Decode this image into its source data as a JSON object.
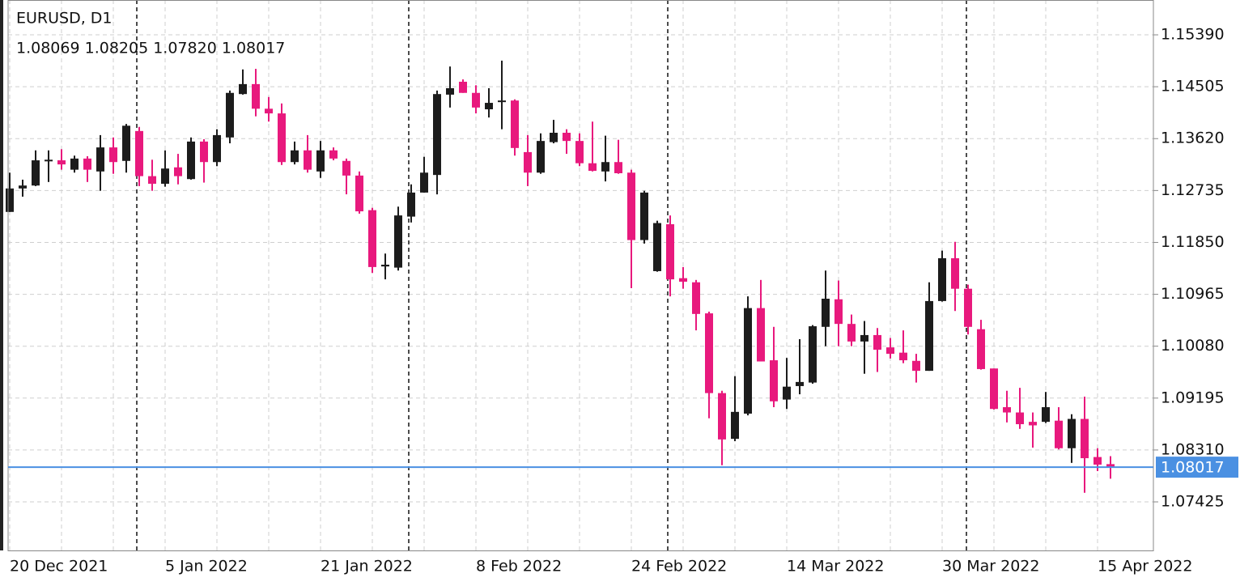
{
  "chart_data": {
    "type": "candlestick",
    "title": "EURUSD, D1",
    "subtitle": "1.08069 1.08205 1.07820 1.08017",
    "categories": [
      "20 Dec 2021",
      null,
      null,
      null,
      null,
      null,
      null,
      null,
      null,
      null,
      null,
      null,
      "5 Jan 2022",
      null,
      null,
      null,
      null,
      null,
      null,
      null,
      null,
      null,
      null,
      null,
      "21 Jan 2022",
      null,
      null,
      null,
      null,
      null,
      null,
      null,
      null,
      null,
      null,
      null,
      "8 Feb 2022",
      null,
      null,
      null,
      null,
      null,
      null,
      null,
      null,
      null,
      null,
      null,
      "24 Feb 2022",
      null,
      null,
      null,
      null,
      null,
      null,
      null,
      null,
      null,
      null,
      null,
      "14 Mar 2022",
      null,
      null,
      null,
      null,
      null,
      null,
      null,
      null,
      null,
      null,
      null,
      "30 Mar 2022",
      null,
      null,
      null,
      null,
      null,
      null,
      null,
      null,
      null,
      null,
      null,
      "15 Apr 2022",
      null
    ],
    "open": [
      1.1237,
      1.1277,
      1.1282,
      1.1324,
      1.1325,
      1.1309,
      1.1328,
      1.1306,
      1.1347,
      1.1324,
      1.1375,
      1.1298,
      1.1285,
      1.1313,
      1.1293,
      1.1357,
      1.1322,
      1.1364,
      1.1438,
      1.1455,
      1.1413,
      1.1405,
      1.1322,
      1.1342,
      1.1306,
      1.1342,
      1.1324,
      1.1299,
      1.124,
      1.1144,
      1.1142,
      1.1229,
      1.127,
      1.13,
      1.1437,
      1.1459,
      1.144,
      1.1412,
      1.1425,
      1.1427,
      1.1339,
      1.1304,
      1.1356,
      1.1372,
      1.1358,
      1.132,
      1.1306,
      1.1322,
      1.1304,
      1.1189,
      1.1136,
      1.1216,
      1.1124,
      1.1117,
      1.1064,
      1.0928,
      1.085,
      1.0893,
      1.1073,
      1.0984,
      1.0917,
      1.094,
      1.0946,
      1.1041,
      1.1088,
      1.1046,
      1.1016,
      1.1027,
      1.1006,
      1.0997,
      1.0983,
      1.0966,
      1.1085,
      1.1158,
      1.1106,
      1.1037,
      1.097,
      1.0904,
      1.0895,
      1.0879,
      1.0879,
      1.0881,
      1.0834,
      1.0884,
      1.0819,
      1.08069
    ],
    "high": [
      1.1304,
      1.1292,
      1.1342,
      1.1342,
      1.1344,
      1.1333,
      1.1332,
      1.1368,
      1.1364,
      1.1387,
      1.1382,
      1.1326,
      1.1342,
      1.1336,
      1.1364,
      1.1361,
      1.1378,
      1.1444,
      1.148,
      1.1481,
      1.1433,
      1.1422,
      1.1357,
      1.1368,
      1.1358,
      1.1347,
      1.1328,
      1.1306,
      1.1244,
      1.1166,
      1.1246,
      1.1284,
      1.1331,
      1.1444,
      1.1485,
      1.1463,
      1.1453,
      1.1448,
      1.1495,
      1.1429,
      1.1368,
      1.1371,
      1.1394,
      1.1378,
      1.1371,
      1.1391,
      1.1367,
      1.136,
      1.1309,
      1.1273,
      1.1222,
      1.1231,
      1.1143,
      1.1121,
      1.1067,
      1.0932,
      1.0957,
      1.1093,
      1.1121,
      1.1041,
      1.0988,
      1.102,
      1.1044,
      1.1137,
      1.112,
      1.1062,
      1.1051,
      1.1039,
      1.1022,
      1.1035,
      1.0995,
      1.1117,
      1.1171,
      1.1186,
      1.1113,
      1.1053,
      1.097,
      1.0932,
      1.0937,
      1.0895,
      1.093,
      1.0904,
      1.0892,
      1.0922,
      1.0834,
      1.08205
    ],
    "low": [
      1.1237,
      1.1263,
      1.1281,
      1.1288,
      1.1309,
      1.1304,
      1.1288,
      1.1273,
      1.1302,
      1.1304,
      1.1281,
      1.1273,
      1.128,
      1.1284,
      1.1292,
      1.1287,
      1.1315,
      1.1354,
      1.1437,
      1.14,
      1.1391,
      1.1317,
      1.1318,
      1.1304,
      1.1295,
      1.1325,
      1.1267,
      1.1234,
      1.1133,
      1.1122,
      1.1137,
      1.1219,
      1.127,
      1.1267,
      1.1415,
      1.144,
      1.1405,
      1.1398,
      1.1378,
      1.1333,
      1.1281,
      1.1302,
      1.1354,
      1.1336,
      1.1315,
      1.1306,
      1.1289,
      1.1302,
      1.1107,
      1.1183,
      1.1135,
      1.1093,
      1.1106,
      1.1035,
      1.0885,
      1.0805,
      1.0846,
      1.089,
      1.0982,
      1.0904,
      1.0901,
      1.0926,
      1.0944,
      1.1008,
      1.1008,
      1.1008,
      1.0961,
      1.0964,
      1.0987,
      1.0979,
      1.0946,
      1.0966,
      1.1084,
      1.1068,
      1.1028,
      1.0968,
      1.09,
      1.0878,
      1.0867,
      1.0835,
      1.0877,
      1.0832,
      1.0809,
      1.0758,
      1.0795,
      1.0782
    ],
    "close": [
      1.1277,
      1.1282,
      1.1325,
      1.1326,
      1.1318,
      1.1328,
      1.1309,
      1.1347,
      1.1322,
      1.1384,
      1.1298,
      1.1285,
      1.1311,
      1.1298,
      1.1357,
      1.1322,
      1.1368,
      1.144,
      1.1455,
      1.1413,
      1.1405,
      1.1322,
      1.1342,
      1.1309,
      1.1342,
      1.1328,
      1.1299,
      1.1238,
      1.1143,
      1.1147,
      1.1231,
      1.127,
      1.1304,
      1.1438,
      1.1448,
      1.144,
      1.1415,
      1.1423,
      1.1427,
      1.1346,
      1.1304,
      1.1358,
      1.1372,
      1.1358,
      1.132,
      1.1307,
      1.1322,
      1.1303,
      1.1189,
      1.127,
      1.1218,
      1.1122,
      1.1118,
      1.1063,
      1.0928,
      1.0849,
      1.0896,
      1.1073,
      1.0982,
      1.0914,
      1.0939,
      1.0947,
      1.1042,
      1.1089,
      1.1046,
      1.1016,
      1.1027,
      1.1002,
      1.0995,
      1.0984,
      1.0966,
      1.1085,
      1.1158,
      1.1106,
      1.1041,
      1.0969,
      1.0901,
      1.0895,
      1.0875,
      1.0873,
      1.0904,
      1.0834,
      1.0884,
      1.0817,
      1.0806,
      1.08017
    ],
    "up_color": "#1c1c1c",
    "down_color": "#e8197d",
    "current_price": 1.08017,
    "current_price_color": "#4a90e2",
    "ylim": [
      1.06597,
      1.15984
    ],
    "yticks": [
      {
        "value": 1.1539,
        "label": "1.15390"
      },
      1.14505,
      {
        "value": 1.1362,
        "label": "1.13620"
      },
      1.12735,
      {
        "value": 1.1185,
        "label": "1.11850"
      },
      1.10965,
      {
        "value": 1.1008,
        "label": "1.10080"
      },
      1.09195,
      {
        "value": 1.0831,
        "label": "1.08310"
      },
      1.07425
    ],
    "grid": true
  }
}
